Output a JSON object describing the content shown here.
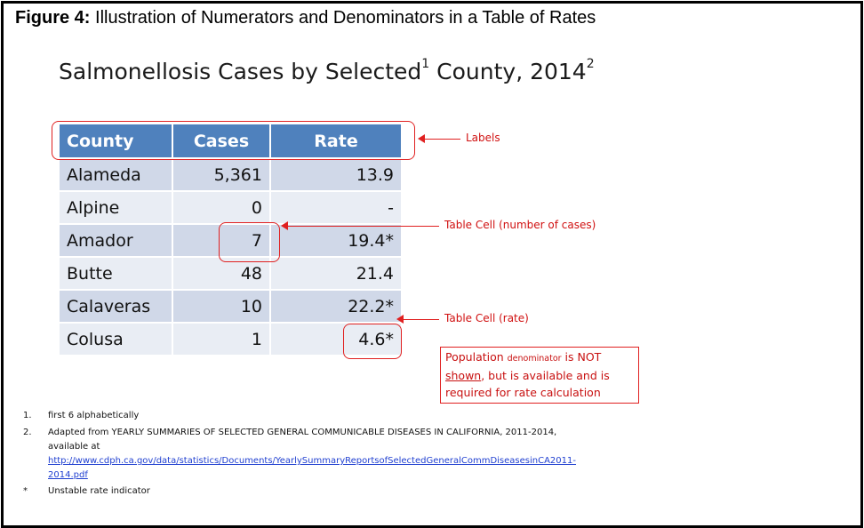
{
  "figure": {
    "label": "Figure 4:",
    "caption": " Illustration of Numerators and Denominators in a Table of Rates"
  },
  "slide": {
    "title_main": "Salmonellosis Cases by Selected",
    "title_sup1": "1",
    "title_mid": " County, 2014",
    "title_sup2": "2"
  },
  "table": {
    "headers": [
      "County",
      "Cases",
      "Rate"
    ],
    "rows": [
      {
        "county": "Alameda",
        "cases": "5,361",
        "rate": "13.9"
      },
      {
        "county": "Alpine",
        "cases": "0",
        "rate": "-"
      },
      {
        "county": "Amador",
        "cases": "7",
        "rate": "19.4*"
      },
      {
        "county": "Butte",
        "cases": "48",
        "rate": "21.4"
      },
      {
        "county": "Calaveras",
        "cases": "10",
        "rate": "22.2*"
      },
      {
        "county": "Colusa",
        "cases": "1",
        "rate": "4.6*"
      }
    ]
  },
  "annotations": {
    "labels": "Labels",
    "cell_cases": "Table Cell (number of cases)",
    "cell_rate": "Table Cell (rate)",
    "note_part1": "Population ",
    "note_small": "denominator",
    "note_part2": " is NOT ",
    "note_shown": "shown",
    "note_part3": ", but is available and is required for rate calculation"
  },
  "footnotes": [
    {
      "marker": "1.",
      "text": "first 6 alphabetically"
    },
    {
      "marker": "2.",
      "text": "Adapted from YEARLY SUMMARIES OF SELECTED GENERAL COMMUNICABLE DISEASES IN CALIFORNIA, 2011-2014, available at",
      "link": "http://www.cdph.ca.gov/data/statistics/Documents/YearlySummaryReportsofSelectedGeneralCommDiseasesinCA2011-2014.pdf"
    },
    {
      "marker": "*",
      "text": "Unstable rate indicator"
    }
  ]
}
